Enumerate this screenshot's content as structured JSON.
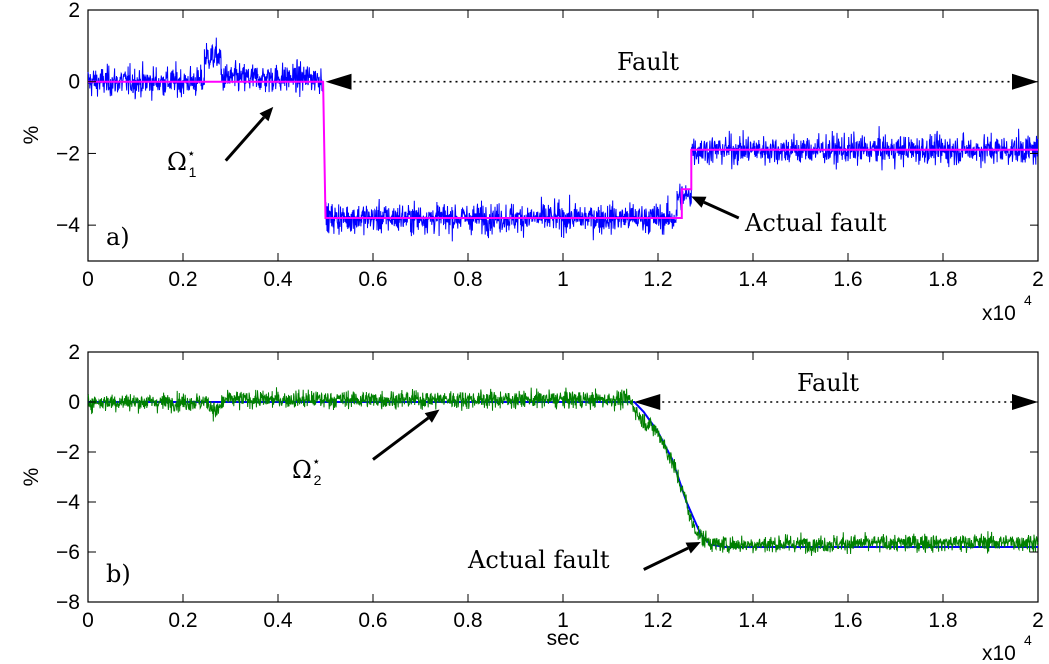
{
  "chart_data": [
    {
      "type": "line",
      "panel_label": "a)",
      "ylabel": "%",
      "xlabel": "",
      "xlim": [
        0,
        20000
      ],
      "ylim": [
        -5,
        2
      ],
      "x_ticks": [
        "0",
        "0.2",
        "0.4",
        "0.6",
        "0.8",
        "1",
        "1.2",
        "1.4",
        "1.6",
        "1.8",
        "2"
      ],
      "y_ticks": [
        "2",
        "0",
        "−2",
        "−4"
      ],
      "y_tick_values": [
        2,
        0,
        -2,
        -4
      ],
      "x_multiplier": "x10",
      "x_multiplier_exp": "4",
      "annotations": {
        "fault_label": "Fault",
        "fault_span": [
          5000,
          20000
        ],
        "fault_y": 0,
        "omega_symbol": "Ω",
        "omega_sup": "⋆",
        "omega_sub": "1",
        "omega_pointer": {
          "from": [
            2900,
            -2.2
          ],
          "to": [
            3900,
            -0.7
          ]
        },
        "actual_fault_label": "Actual fault",
        "actual_fault_pointer": {
          "from": [
            13700,
            -3.8
          ],
          "to": [
            12700,
            -3.2
          ]
        }
      },
      "series": [
        {
          "color": "#0000ff",
          "noise_std": 0.35,
          "segments": [
            {
              "x": [
                0,
                2450
              ],
              "y": 0.0
            },
            {
              "x": [
                2450,
                2800
              ],
              "y": 0.7
            },
            {
              "x": [
                2800,
                4950
              ],
              "y": 0.1
            },
            {
              "x": [
                5000,
                12400
              ],
              "y": -3.8
            },
            {
              "x": [
                12400,
                12700
              ],
              "y": -3.2
            },
            {
              "x": [
                12700,
                20000
              ],
              "y": -1.9
            }
          ]
        },
        {
          "color": "#ff00ff",
          "noise_std": 0.0,
          "segments": [
            {
              "x": [
                0,
                4950
              ],
              "y": 0.0
            },
            {
              "x": [
                5000,
                12500
              ],
              "y": -3.8
            },
            {
              "x": [
                12500,
                12700
              ],
              "y": -3.0
            },
            {
              "x": [
                12700,
                20000
              ],
              "y": -1.9
            }
          ]
        }
      ]
    },
    {
      "type": "line",
      "panel_label": "b)",
      "ylabel": "%",
      "xlabel": "sec",
      "xlim": [
        0,
        20000
      ],
      "ylim": [
        -8,
        2
      ],
      "x_ticks": [
        "0",
        "0.2",
        "0.4",
        "0.6",
        "0.8",
        "1",
        "1.2",
        "1.4",
        "1.6",
        "1.8",
        "2"
      ],
      "y_ticks": [
        "2",
        "0",
        "−2",
        "−4",
        "−6",
        "−8"
      ],
      "y_tick_values": [
        2,
        0,
        -2,
        -4,
        -6,
        -8
      ],
      "x_multiplier": "x10",
      "x_multiplier_exp": "4",
      "annotations": {
        "fault_label": "Fault",
        "fault_span": [
          11500,
          20000
        ],
        "fault_y": 0,
        "omega_symbol": "Ω",
        "omega_sup": "⋆",
        "omega_sub": "2",
        "omega_pointer": {
          "from": [
            6000,
            -2.3
          ],
          "to": [
            7400,
            -0.3
          ]
        },
        "actual_fault_label": "Actual fault",
        "actual_fault_pointer": {
          "from": [
            11700,
            -6.7
          ],
          "to": [
            12900,
            -5.6
          ]
        }
      },
      "series": [
        {
          "color": "#0000ff",
          "noise_std": 0.0,
          "points": [
            [
              0,
              0
            ],
            [
              11500,
              0
            ],
            [
              11700,
              -0.4
            ],
            [
              12000,
              -1.2
            ],
            [
              12300,
              -2.3
            ],
            [
              12600,
              -4.0
            ],
            [
              12900,
              -5.3
            ],
            [
              13100,
              -5.7
            ],
            [
              13400,
              -5.8
            ],
            [
              20000,
              -5.8
            ]
          ]
        },
        {
          "color": "#008000",
          "noise_std": 0.3,
          "points": [
            [
              0,
              0
            ],
            [
              2500,
              0
            ],
            [
              2700,
              -0.4
            ],
            [
              2900,
              0.1
            ],
            [
              11400,
              0.1
            ],
            [
              11500,
              -0.2
            ],
            [
              11600,
              -0.6
            ],
            [
              12000,
              -1.2
            ],
            [
              12300,
              -2.4
            ],
            [
              12600,
              -4.0
            ],
            [
              12700,
              -4.8
            ],
            [
              12900,
              -5.4
            ],
            [
              13200,
              -5.7
            ],
            [
              20000,
              -5.6
            ]
          ]
        }
      ]
    }
  ]
}
